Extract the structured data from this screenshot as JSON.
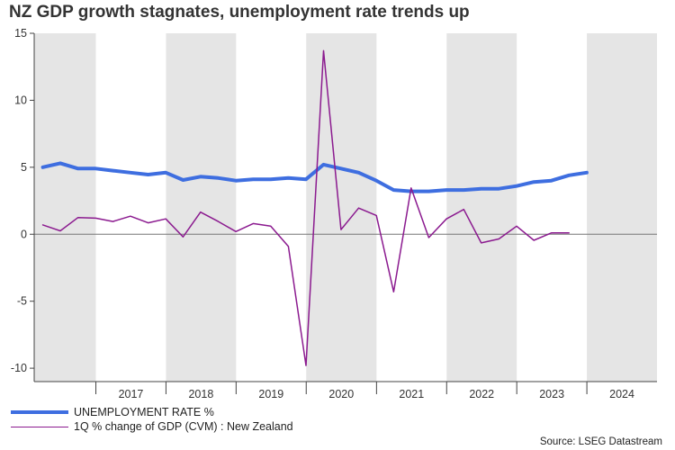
{
  "title": "NZ GDP growth stagnates, unemployment rate trends up",
  "source": "Source: LSEG Datastream",
  "colors": {
    "unemployment": "#3e6ee0",
    "gdp": "#8b1a8f",
    "shade": "#e5e5e5",
    "zero_line": "#777777"
  },
  "chart_data": {
    "type": "line",
    "title": "NZ GDP growth stagnates, unemployment rate trends up",
    "xlabel": "",
    "ylabel": "",
    "ylim": [
      -11,
      15
    ],
    "yticks": [
      15,
      10,
      5,
      0,
      -5,
      -10
    ],
    "x_range": [
      "2016-02-15",
      "2024-12-31"
    ],
    "year_labels": [
      "2017",
      "2018",
      "2019",
      "2020",
      "2021",
      "2022",
      "2023",
      "2024"
    ],
    "shaded_years": [
      "2016",
      "2018",
      "2020",
      "2022",
      "2024"
    ],
    "grid": false,
    "legend_position": "bottom-left",
    "series": [
      {
        "name": "UNEMPLOYMENT RATE %",
        "points": [
          [
            "2016-03-31",
            5.0
          ],
          [
            "2016-06-30",
            5.3
          ],
          [
            "2016-09-30",
            4.9
          ],
          [
            "2016-12-31",
            4.9
          ],
          [
            "2017-03-31",
            4.75
          ],
          [
            "2017-06-30",
            4.6
          ],
          [
            "2017-09-30",
            4.45
          ],
          [
            "2017-12-31",
            4.6
          ],
          [
            "2018-03-31",
            4.05
          ],
          [
            "2018-06-30",
            4.3
          ],
          [
            "2018-09-30",
            4.2
          ],
          [
            "2018-12-31",
            4.0
          ],
          [
            "2019-03-31",
            4.1
          ],
          [
            "2019-06-30",
            4.1
          ],
          [
            "2019-09-30",
            4.2
          ],
          [
            "2019-12-31",
            4.1
          ],
          [
            "2020-03-31",
            5.2
          ],
          [
            "2020-06-30",
            4.9
          ],
          [
            "2020-09-30",
            4.6
          ],
          [
            "2020-12-31",
            4.0
          ],
          [
            "2021-03-31",
            3.3
          ],
          [
            "2021-06-30",
            3.2
          ],
          [
            "2021-09-30",
            3.2
          ],
          [
            "2021-12-31",
            3.3
          ],
          [
            "2022-03-31",
            3.3
          ],
          [
            "2022-06-30",
            3.4
          ],
          [
            "2022-09-30",
            3.4
          ],
          [
            "2022-12-31",
            3.6
          ],
          [
            "2023-03-31",
            3.9
          ],
          [
            "2023-06-30",
            4.0
          ],
          [
            "2023-09-30",
            4.4
          ],
          [
            "2023-12-31",
            4.6
          ]
        ]
      },
      {
        "name": "1Q % change of GDP (CVM) : New Zealand",
        "points": [
          [
            "2016-03-31",
            0.7
          ],
          [
            "2016-06-30",
            0.25
          ],
          [
            "2016-09-30",
            1.25
          ],
          [
            "2016-12-31",
            1.2
          ],
          [
            "2017-03-31",
            0.95
          ],
          [
            "2017-06-30",
            1.35
          ],
          [
            "2017-09-30",
            0.85
          ],
          [
            "2017-12-31",
            1.15
          ],
          [
            "2018-03-31",
            -0.2
          ],
          [
            "2018-06-30",
            1.65
          ],
          [
            "2018-09-30",
            0.95
          ],
          [
            "2018-12-31",
            0.2
          ],
          [
            "2019-03-31",
            0.8
          ],
          [
            "2019-06-30",
            0.6
          ],
          [
            "2019-09-30",
            -0.9
          ],
          [
            "2019-12-31",
            -9.8
          ],
          [
            "2020-03-31",
            13.7
          ],
          [
            "2020-06-30",
            0.35
          ],
          [
            "2020-09-30",
            1.95
          ],
          [
            "2020-12-31",
            1.4
          ],
          [
            "2021-03-31",
            -4.3
          ],
          [
            "2021-06-30",
            3.45
          ],
          [
            "2021-09-30",
            -0.25
          ],
          [
            "2021-12-31",
            1.15
          ],
          [
            "2022-03-31",
            1.85
          ],
          [
            "2022-06-30",
            -0.65
          ],
          [
            "2022-09-30",
            -0.35
          ],
          [
            "2022-12-31",
            0.6
          ],
          [
            "2023-03-31",
            -0.45
          ],
          [
            "2023-06-30",
            0.1
          ],
          [
            "2023-09-30",
            0.1
          ]
        ]
      }
    ]
  }
}
